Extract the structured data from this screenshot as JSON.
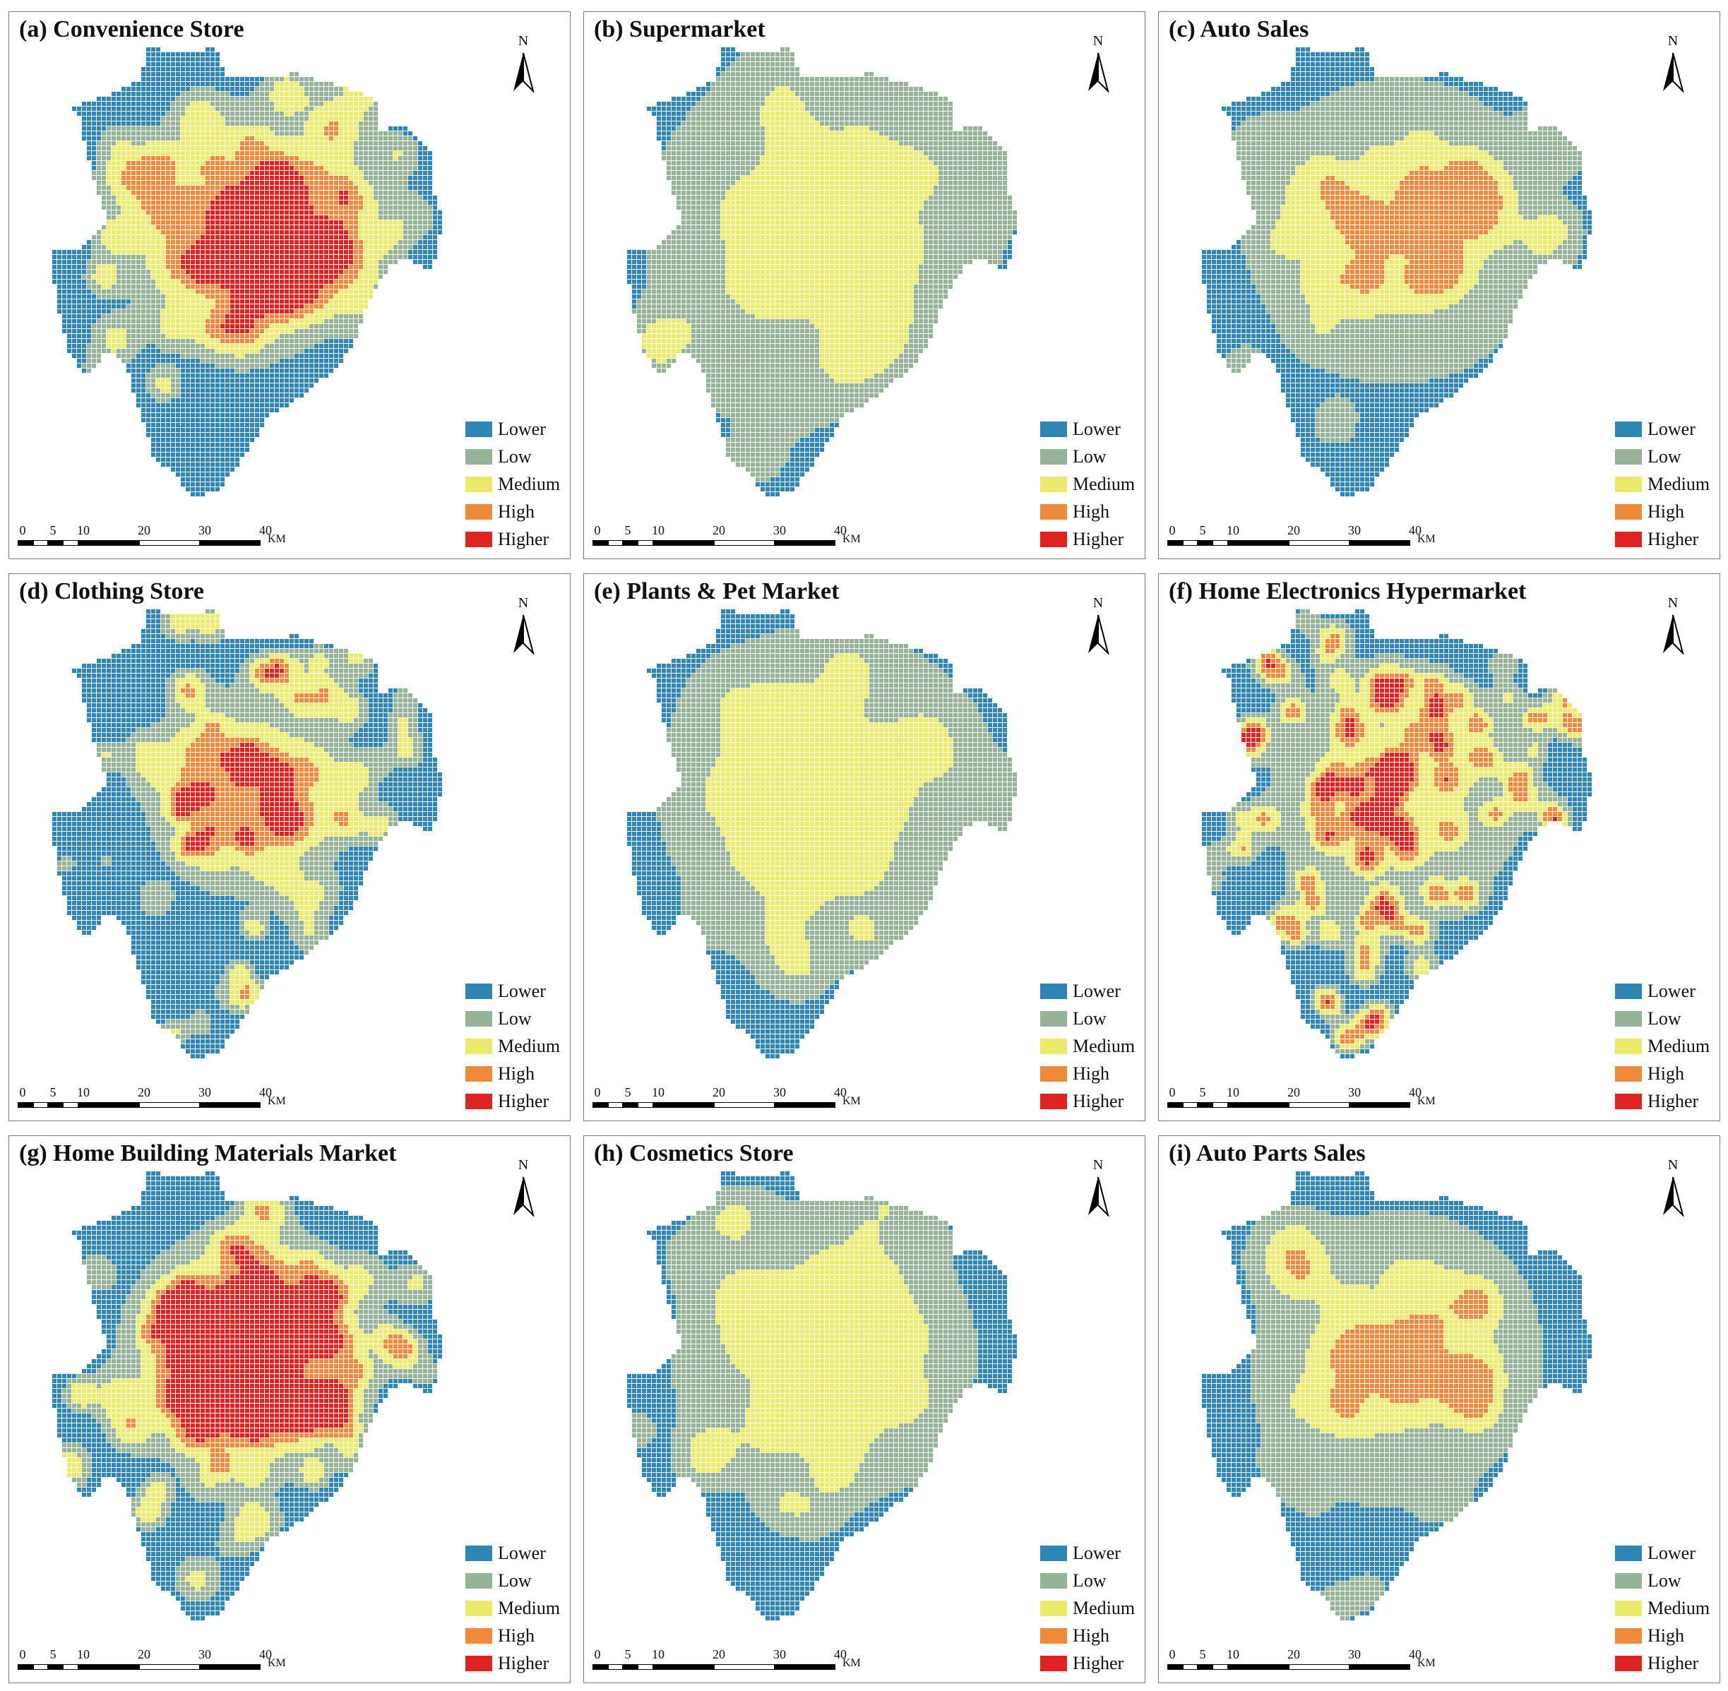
{
  "legend": {
    "items": [
      {
        "label": "Lower",
        "color": "#2f86b5"
      },
      {
        "label": "Low",
        "color": "#95b397"
      },
      {
        "label": "Medium",
        "color": "#ecea6a"
      },
      {
        "label": "High",
        "color": "#ef8a3c"
      },
      {
        "label": "Higher",
        "color": "#df2222"
      }
    ]
  },
  "north_label": "N",
  "scale": {
    "ticks": [
      "0",
      "5",
      "10",
      "20",
      "30",
      "40"
    ],
    "unit": "KM"
  },
  "panels": [
    {
      "title": "(a) Convenience Store"
    },
    {
      "title": "(b) Supermarket"
    },
    {
      "title": "(c) Auto Sales"
    },
    {
      "title": "(d) Clothing Store"
    },
    {
      "title": "(e) Plants & Pet Market"
    },
    {
      "title": "(f) Home Electronics Hypermarket"
    },
    {
      "title": "(g) Home Building Materials Market"
    },
    {
      "title": "(h) Cosmetics Store"
    },
    {
      "title": "(i) Auto Parts Sales"
    }
  ]
}
